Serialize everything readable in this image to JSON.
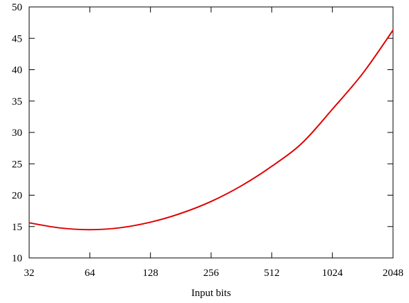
{
  "chart_data": {
    "type": "line",
    "title": "",
    "xlabel": "Input bits",
    "ylabel": "",
    "x_scale": "log2",
    "xlim": [
      32,
      2048
    ],
    "ylim": [
      10,
      50
    ],
    "x_ticks": [
      "32",
      "64",
      "128",
      "256",
      "512",
      "1024",
      "2048"
    ],
    "y_ticks": [
      "10",
      "15",
      "20",
      "25",
      "30",
      "35",
      "40",
      "45",
      "50"
    ],
    "grid": false,
    "legend": "none",
    "series": [
      {
        "color": "#e00000",
        "x": [
          32,
          45,
          64,
          90,
          128,
          181,
          256,
          362,
          512,
          724,
          1024,
          1448,
          2048
        ],
        "y": [
          15.6,
          14.8,
          14.5,
          14.8,
          15.7,
          17.1,
          19.0,
          21.5,
          24.6,
          28.3,
          33.7,
          39.4,
          46.3
        ]
      }
    ]
  }
}
